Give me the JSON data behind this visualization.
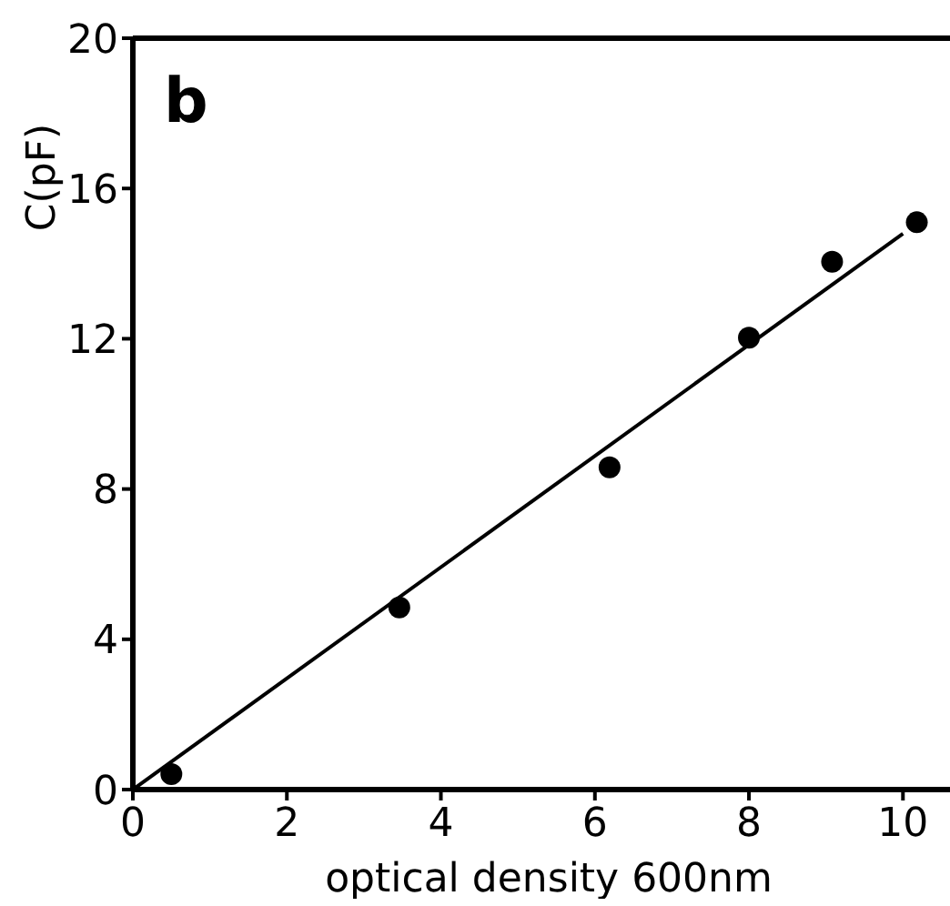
{
  "chart_data": {
    "type": "scatter",
    "xlabel": "optical density   600nm",
    "ylabel": "C(pF)",
    "annotations": [
      "b"
    ],
    "xlim": [
      0,
      10.8
    ],
    "xticks": [
      0,
      2,
      4,
      6,
      8,
      10
    ],
    "ylim": [
      0,
      20
    ],
    "yticks": [
      0,
      4,
      8,
      12,
      16,
      20
    ],
    "grid": false,
    "legend": false,
    "marker": "circle",
    "series": [
      {
        "color": "#000000",
        "x": [
          0.5,
          3.46,
          6.19,
          8.0,
          9.08,
          10.18
        ],
        "values": [
          0.41,
          4.85,
          8.58,
          12.03,
          14.05,
          15.1
        ]
      },
      {
        "type": "line",
        "color": "#000000",
        "x": [
          0,
          10
        ],
        "values": [
          0,
          14.8
        ],
        "marker": "none",
        "line_style": "solid"
      }
    ]
  }
}
